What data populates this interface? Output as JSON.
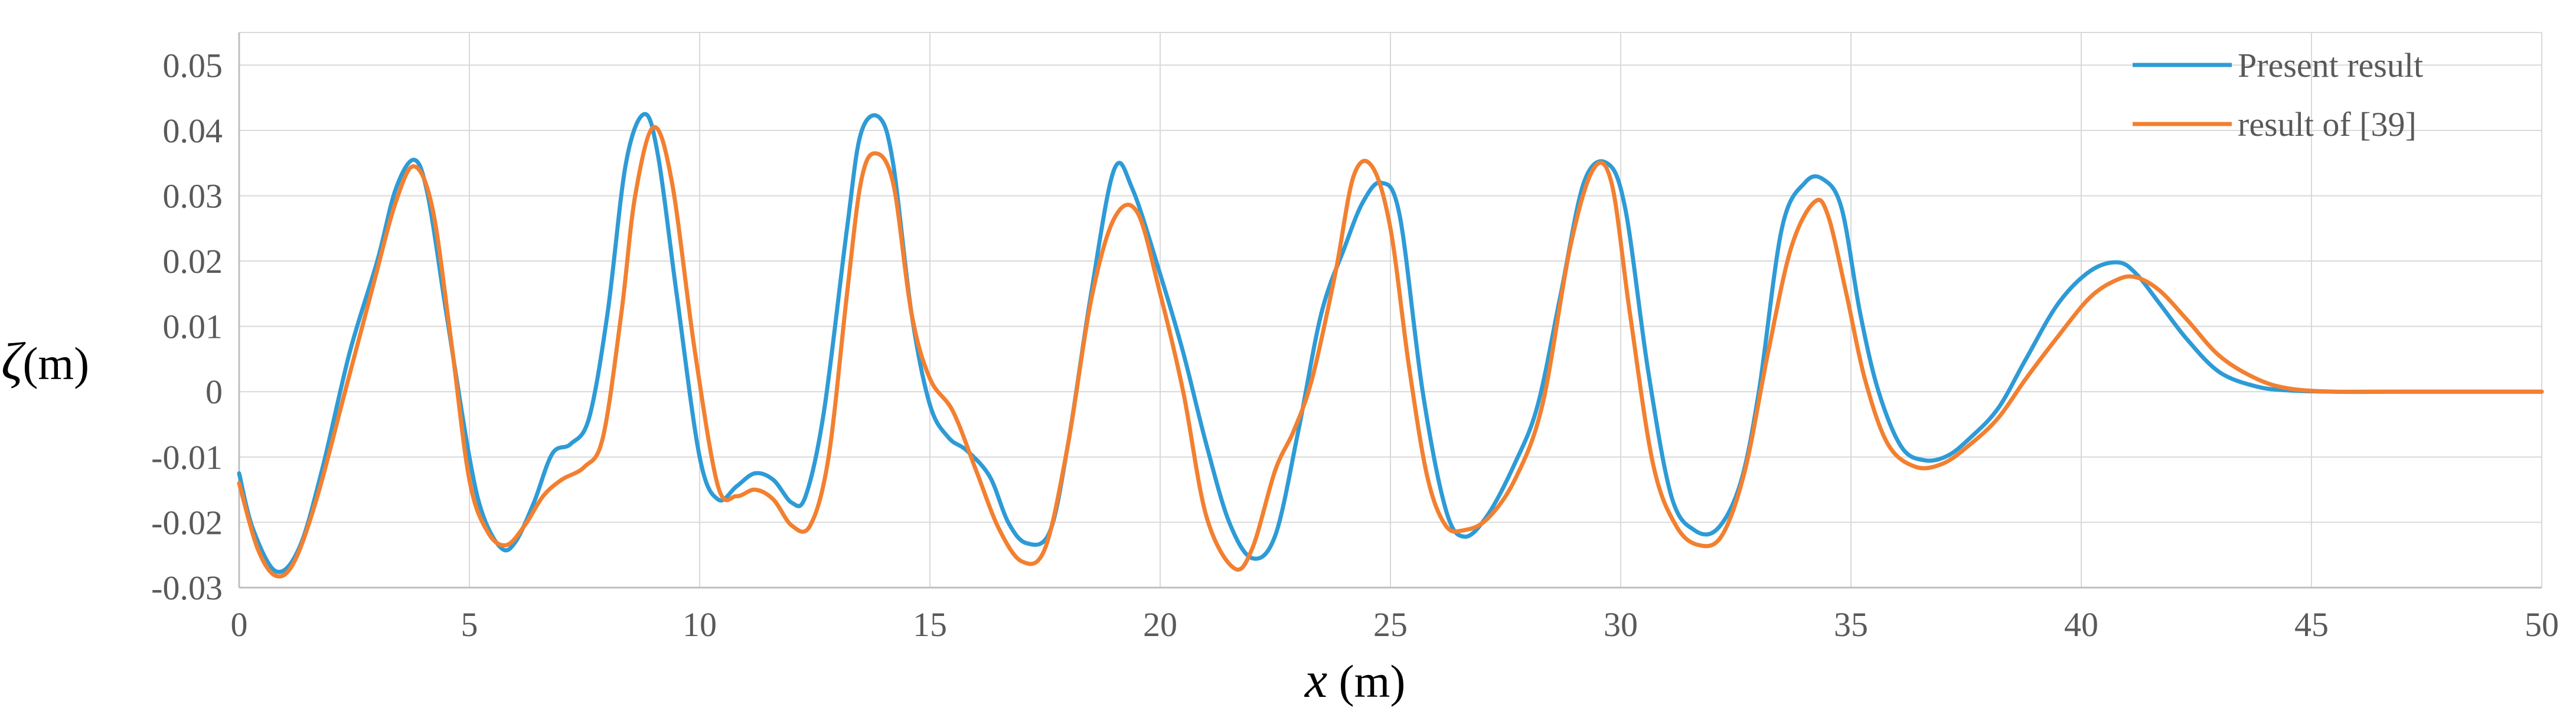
{
  "chart_data": {
    "type": "line",
    "xlabel": {
      "symbol": "x",
      "unit": " (m)"
    },
    "ylabel": {
      "symbol": "ζ",
      "unit": "(m)"
    },
    "xlim": [
      0,
      50
    ],
    "ylim": [
      -0.03,
      0.055
    ],
    "xticks": [
      0,
      5,
      10,
      15,
      20,
      25,
      30,
      35,
      40,
      45,
      50
    ],
    "yticks": [
      -0.03,
      -0.02,
      -0.01,
      0,
      0.01,
      0.02,
      0.03,
      0.04,
      0.05
    ],
    "xtick_labels": [
      "0",
      "5",
      "10",
      "15",
      "20",
      "25",
      "30",
      "35",
      "40",
      "45",
      "50"
    ],
    "ytick_labels": [
      "-0.03",
      "-0.02",
      "-0.01",
      "0",
      "0.01",
      "0.02",
      "0.03",
      "0.04",
      "0.05"
    ],
    "grid": true,
    "legend_position": "top-right",
    "series": [
      {
        "name": "Present result",
        "color": "#2E9BD6",
        "x": [
          0,
          0.3,
          0.8,
          1.3,
          1.8,
          2.4,
          3.0,
          3.4,
          3.8,
          4.1,
          4.5,
          5.0,
          5.3,
          5.7,
          6.0,
          6.4,
          6.8,
          7.2,
          7.6,
          8.0,
          8.4,
          8.8,
          9.1,
          9.5,
          10.0,
          10.4,
          10.8,
          11.2,
          11.6,
          12.0,
          12.3,
          12.7,
          13.2,
          13.5,
          13.9,
          14.2,
          14.6,
          15.0,
          15.4,
          15.8,
          16.3,
          16.7,
          17.1,
          17.6,
          18.0,
          18.5,
          19.0,
          19.4,
          20.0,
          20.5,
          21.0,
          21.5,
          22.0,
          22.5,
          23.0,
          23.5,
          24.0,
          24.4,
          24.8,
          25.2,
          25.7,
          26.2,
          26.6,
          27.1,
          27.7,
          28.2,
          28.7,
          29.2,
          29.7,
          30.1,
          30.6,
          31.1,
          31.6,
          32.1,
          32.6,
          33.0,
          33.5,
          34.0,
          34.4,
          34.8,
          35.2,
          35.6,
          36.1,
          36.6,
          37.1,
          37.6,
          38.2,
          38.8,
          39.5,
          40.2,
          40.8,
          41.2,
          41.7,
          42.3,
          43.0,
          43.8,
          44.5,
          45.5,
          47.0,
          50.0
        ],
        "y": [
          -0.0125,
          -0.021,
          -0.0275,
          -0.024,
          -0.012,
          0.006,
          0.02,
          0.031,
          0.0355,
          0.03,
          0.012,
          -0.01,
          -0.019,
          -0.024,
          -0.023,
          -0.017,
          -0.0095,
          -0.008,
          -0.004,
          0.012,
          0.035,
          0.0425,
          0.036,
          0.015,
          -0.01,
          -0.0165,
          -0.0145,
          -0.0125,
          -0.0135,
          -0.017,
          -0.016,
          -0.003,
          0.025,
          0.0395,
          0.042,
          0.035,
          0.012,
          -0.002,
          -0.007,
          -0.009,
          -0.013,
          -0.02,
          -0.0232,
          -0.0215,
          -0.008,
          0.015,
          0.034,
          0.031,
          0.018,
          0.006,
          -0.008,
          -0.02,
          -0.0255,
          -0.022,
          -0.006,
          0.012,
          0.022,
          0.029,
          0.032,
          0.027,
          0.0,
          -0.018,
          -0.0222,
          -0.019,
          -0.011,
          -0.002,
          0.015,
          0.032,
          0.035,
          0.028,
          0.003,
          -0.016,
          -0.0212,
          -0.021,
          -0.014,
          0.0,
          0.025,
          0.032,
          0.0325,
          0.028,
          0.012,
          0.0,
          -0.0085,
          -0.0105,
          -0.0098,
          -0.007,
          -0.0025,
          0.005,
          0.0135,
          0.0185,
          0.0198,
          0.018,
          0.0135,
          0.008,
          0.003,
          0.0008,
          0.0002,
          0.0,
          0.0,
          0.0
        ]
      },
      {
        "name": "result of [39]",
        "color": "#F28030",
        "x": [
          0,
          0.4,
          0.8,
          1.2,
          1.7,
          2.3,
          2.9,
          3.4,
          3.8,
          4.2,
          4.6,
          5.0,
          5.4,
          5.8,
          6.2,
          6.6,
          7.0,
          7.5,
          7.9,
          8.3,
          8.6,
          9.0,
          9.4,
          9.9,
          10.4,
          10.8,
          11.2,
          11.6,
          12.0,
          12.4,
          12.8,
          13.2,
          13.5,
          13.8,
          14.2,
          14.6,
          15.0,
          15.5,
          16.0,
          16.5,
          17.0,
          17.5,
          18.0,
          18.5,
          19.0,
          19.5,
          20.0,
          20.5,
          21.0,
          21.6,
          22.0,
          22.5,
          22.9,
          23.3,
          23.8,
          24.2,
          24.6,
          25.0,
          25.4,
          25.8,
          26.2,
          26.6,
          27.1,
          27.7,
          28.3,
          28.9,
          29.4,
          29.8,
          30.2,
          30.7,
          31.2,
          31.7,
          32.2,
          32.7,
          33.2,
          33.7,
          34.2,
          34.5,
          34.9,
          35.3,
          35.8,
          36.4,
          37.0,
          37.6,
          38.2,
          38.8,
          39.5,
          40.2,
          40.8,
          41.2,
          41.7,
          42.3,
          43.0,
          43.8,
          44.5,
          45.5,
          47.0,
          50.0
        ],
        "y": [
          -0.014,
          -0.024,
          -0.0282,
          -0.026,
          -0.016,
          0.0,
          0.016,
          0.029,
          0.0345,
          0.028,
          0.008,
          -0.0135,
          -0.0215,
          -0.0235,
          -0.0205,
          -0.016,
          -0.0135,
          -0.0115,
          -0.007,
          0.012,
          0.03,
          0.0405,
          0.032,
          0.006,
          -0.0145,
          -0.016,
          -0.015,
          -0.0165,
          -0.0205,
          -0.0205,
          -0.01,
          0.015,
          0.032,
          0.0365,
          0.032,
          0.012,
          0.002,
          -0.003,
          -0.012,
          -0.021,
          -0.026,
          -0.024,
          -0.008,
          0.014,
          0.0265,
          0.0275,
          0.015,
          0.0,
          -0.019,
          -0.027,
          -0.024,
          -0.012,
          -0.006,
          0.002,
          0.018,
          0.033,
          0.0345,
          0.025,
          0.004,
          -0.013,
          -0.0205,
          -0.0212,
          -0.0195,
          -0.0135,
          -0.002,
          0.022,
          0.034,
          0.032,
          0.012,
          -0.011,
          -0.0205,
          -0.0235,
          -0.022,
          -0.012,
          0.006,
          0.022,
          0.029,
          0.027,
          0.015,
          0.002,
          -0.008,
          -0.0115,
          -0.011,
          -0.008,
          -0.004,
          0.002,
          0.0085,
          0.0145,
          0.0172,
          0.0175,
          0.0155,
          0.011,
          0.0055,
          0.002,
          0.0005,
          0.0,
          0.0,
          0.0
        ]
      }
    ]
  }
}
